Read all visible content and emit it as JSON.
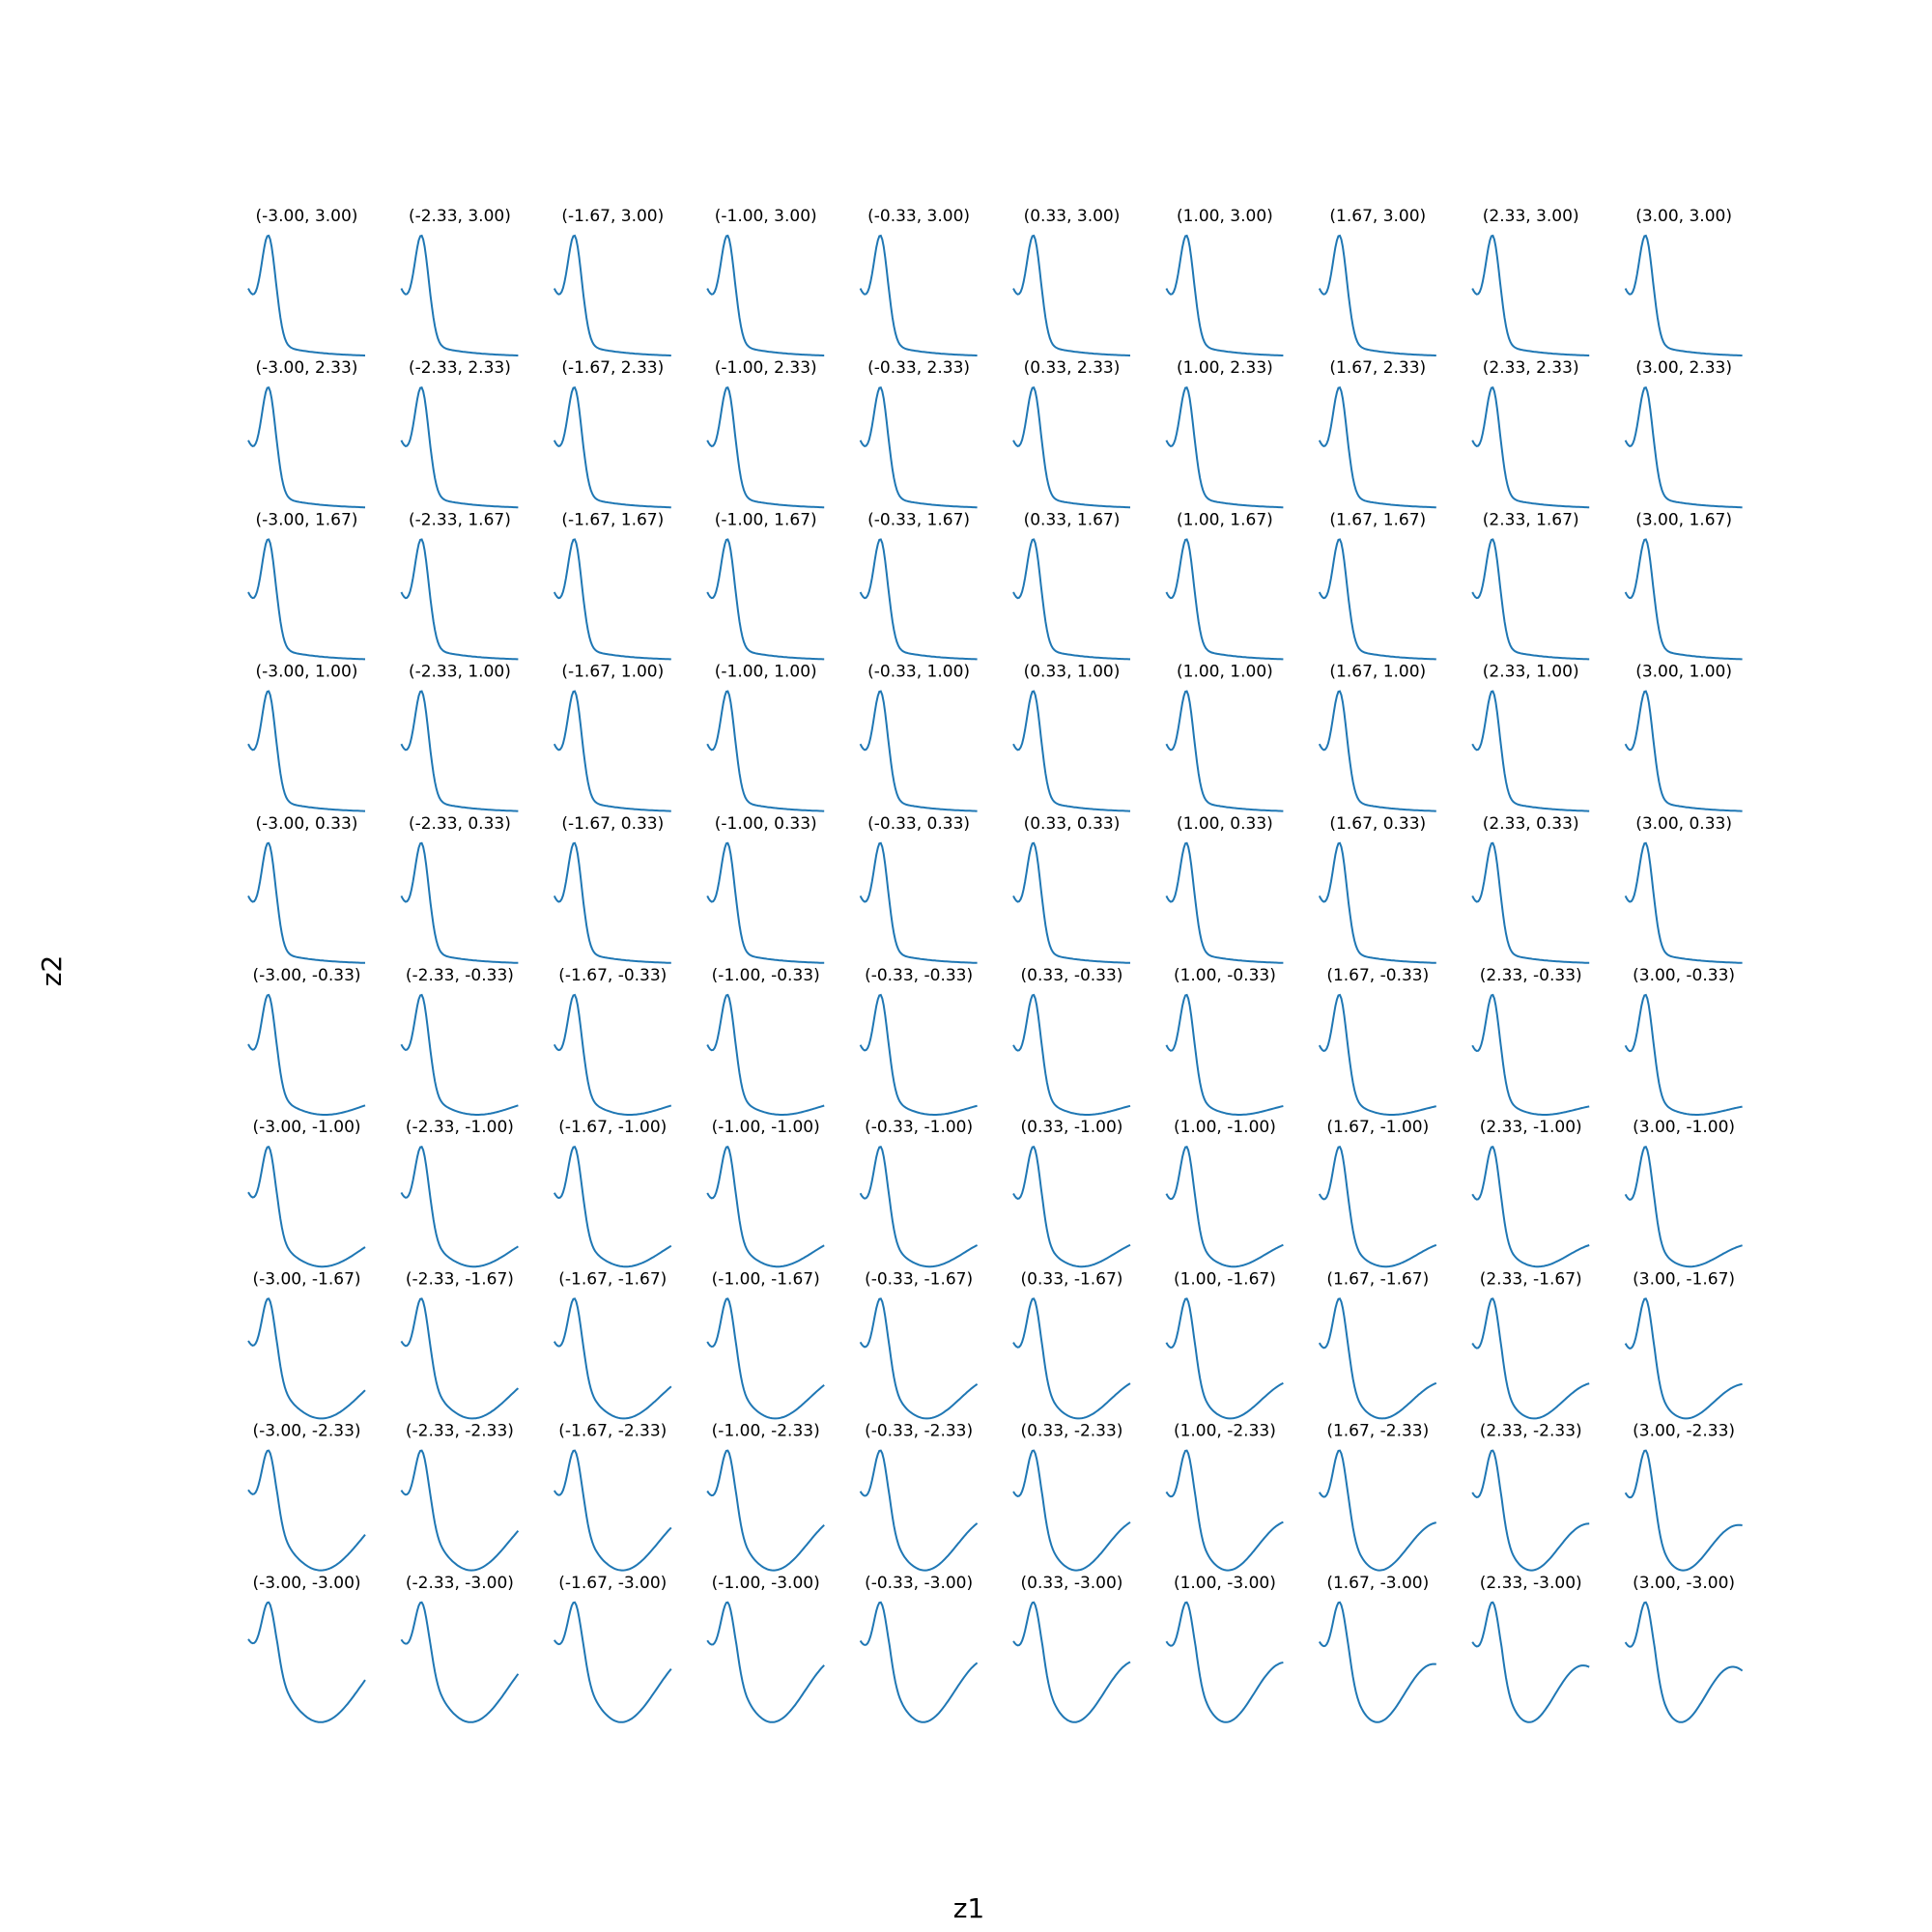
{
  "chart_data": {
    "type": "line",
    "title": "",
    "xlabel": "z1",
    "ylabel": "z2",
    "line_color": "#1f77b4",
    "grid": false,
    "axes_visible": false,
    "z1_values": [
      -3.0,
      -2.33,
      -1.67,
      -1.0,
      -0.33,
      0.33,
      1.0,
      1.67,
      2.33,
      3.0
    ],
    "z2_values": [
      3.0,
      2.33,
      1.67,
      1.0,
      0.33,
      -0.33,
      -1.0,
      -1.67,
      -2.33,
      -3.0
    ],
    "panel_titles": [
      [
        "(-3.00, 3.00)",
        "(-2.33, 3.00)",
        "(-1.67, 3.00)",
        "(-1.00, 3.00)",
        "(-0.33, 3.00)",
        "(0.33, 3.00)",
        "(1.00, 3.00)",
        "(1.67, 3.00)",
        "(2.33, 3.00)",
        "(3.00, 3.00)"
      ],
      [
        "(-3.00, 2.33)",
        "(-2.33, 2.33)",
        "(-1.67, 2.33)",
        "(-1.00, 2.33)",
        "(-0.33, 2.33)",
        "(0.33, 2.33)",
        "(1.00, 2.33)",
        "(1.67, 2.33)",
        "(2.33, 2.33)",
        "(3.00, 2.33)"
      ],
      [
        "(-3.00, 1.67)",
        "(-2.33, 1.67)",
        "(-1.67, 1.67)",
        "(-1.00, 1.67)",
        "(-0.33, 1.67)",
        "(0.33, 1.67)",
        "(1.00, 1.67)",
        "(1.67, 1.67)",
        "(2.33, 1.67)",
        "(3.00, 1.67)"
      ],
      [
        "(-3.00, 1.00)",
        "(-2.33, 1.00)",
        "(-1.67, 1.00)",
        "(-1.00, 1.00)",
        "(-0.33, 1.00)",
        "(0.33, 1.00)",
        "(1.00, 1.00)",
        "(1.67, 1.00)",
        "(2.33, 1.00)",
        "(3.00, 1.00)"
      ],
      [
        "(-3.00, 0.33)",
        "(-2.33, 0.33)",
        "(-1.67, 0.33)",
        "(-1.00, 0.33)",
        "(-0.33, 0.33)",
        "(0.33, 0.33)",
        "(1.00, 0.33)",
        "(1.67, 0.33)",
        "(2.33, 0.33)",
        "(3.00, 0.33)"
      ],
      [
        "(-3.00, -0.33)",
        "(-2.33, -0.33)",
        "(-1.67, -0.33)",
        "(-1.00, -0.33)",
        "(-0.33, -0.33)",
        "(0.33, -0.33)",
        "(1.00, -0.33)",
        "(1.67, -0.33)",
        "(2.33, -0.33)",
        "(3.00, -0.33)"
      ],
      [
        "(-3.00, -1.00)",
        "(-2.33, -1.00)",
        "(-1.67, -1.00)",
        "(-1.00, -1.00)",
        "(-0.33, -1.00)",
        "(0.33, -1.00)",
        "(1.00, -1.00)",
        "(1.67, -1.00)",
        "(2.33, -1.00)",
        "(3.00, -1.00)"
      ],
      [
        "(-3.00, -1.67)",
        "(-2.33, -1.67)",
        "(-1.67, -1.67)",
        "(-1.00, -1.67)",
        "(-0.33, -1.67)",
        "(0.33, -1.67)",
        "(1.00, -1.67)",
        "(1.67, -1.67)",
        "(2.33, -1.67)",
        "(3.00, -1.67)"
      ],
      [
        "(-3.00, -2.33)",
        "(-2.33, -2.33)",
        "(-1.67, -2.33)",
        "(-1.00, -2.33)",
        "(-0.33, -2.33)",
        "(0.33, -2.33)",
        "(1.00, -2.33)",
        "(1.67, -2.33)",
        "(2.33, -2.33)",
        "(3.00, -2.33)"
      ],
      [
        "(-3.00, -3.00)",
        "(-2.33, -3.00)",
        "(-1.67, -3.00)",
        "(-1.00, -3.00)",
        "(-0.33, -3.00)",
        "(0.33, -3.00)",
        "(1.00, -3.00)",
        "(1.67, -3.00)",
        "(2.33, -3.00)",
        "(3.00, -3.00)"
      ]
    ]
  }
}
